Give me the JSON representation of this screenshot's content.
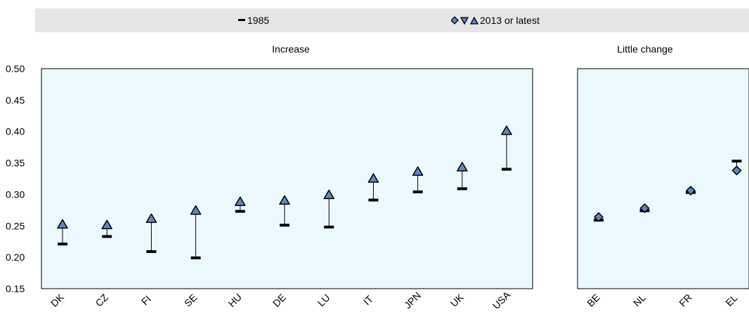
{
  "chart_data": {
    "type": "dot-range",
    "legend": {
      "start_label": "1985",
      "end_label": "2013 or latest",
      "end_marker_shapes": [
        "diamond",
        "triangle-down",
        "triangle-up"
      ]
    },
    "colors": {
      "panel_fill": "#eafafc",
      "marker_fill": "#5b87c3",
      "bar": "#000000",
      "legend_bg": "#e6e6e6"
    },
    "y_ticks": [
      "0.50",
      "0.45",
      "0.40",
      "0.35",
      "0.30",
      "0.25",
      "0.20",
      "0.15"
    ],
    "ylim": [
      0.15,
      0.5
    ],
    "grid": false,
    "panels": [
      {
        "title": "Increase",
        "categories": [
          "DK",
          "CZ",
          "FI",
          "SE",
          "HU",
          "DE",
          "LU",
          "IT",
          "JPN",
          "UK",
          "USA"
        ],
        "start": [
          0.221,
          0.233,
          0.209,
          0.199,
          0.273,
          0.251,
          0.248,
          0.291,
          0.304,
          0.309,
          0.34
        ],
        "end": [
          0.252,
          0.251,
          0.261,
          0.274,
          0.288,
          0.29,
          0.299,
          0.325,
          0.336,
          0.343,
          0.401
        ],
        "end_marker": "triangle-up"
      },
      {
        "title": "Little change",
        "categories": [
          "BE",
          "NL",
          "FR",
          "EL"
        ],
        "start": [
          0.259,
          0.274,
          0.303,
          0.353
        ],
        "end": [
          0.264,
          0.278,
          0.306,
          0.338
        ],
        "end_marker": "diamond"
      }
    ]
  }
}
